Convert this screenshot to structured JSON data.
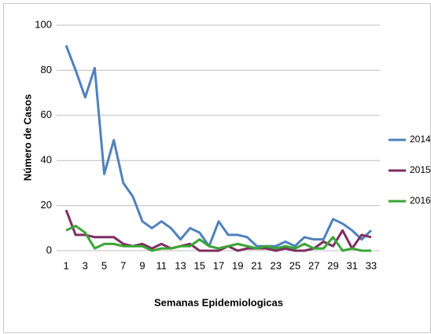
{
  "chart_data": {
    "type": "line",
    "y_label": "Número de Casos",
    "x_label": "Semanas Epidemiologicas",
    "categories": [
      "1",
      null,
      "3",
      null,
      "5",
      null,
      "7",
      null,
      "9",
      null,
      "11",
      null,
      "13",
      null,
      "15",
      null,
      "17",
      null,
      "19",
      null,
      "21",
      null,
      "23",
      null,
      "25",
      null,
      "27",
      null,
      "29",
      null,
      "31",
      null,
      "33"
    ],
    "series": [
      {
        "name": "2014",
        "color": "#4f81bd",
        "values": [
          91,
          80,
          68,
          81,
          34,
          49,
          30,
          24,
          13,
          10,
          13,
          10,
          5,
          10,
          8,
          2,
          13,
          7,
          7,
          6,
          2,
          2,
          2,
          4,
          2,
          6,
          5,
          5,
          14,
          12,
          9,
          5,
          9
        ]
      },
      {
        "name": "2015",
        "color": "#7f2d62",
        "values": [
          18,
          7,
          7,
          6,
          6,
          6,
          3,
          2,
          3,
          1,
          3,
          1,
          2,
          3,
          0,
          0,
          0,
          2,
          0,
          1,
          1,
          1,
          0,
          1,
          0,
          0,
          1,
          4,
          2,
          9,
          1,
          7,
          6
        ]
      },
      {
        "name": "2016",
        "color": "#3aa535",
        "values": [
          9,
          11,
          8,
          1,
          3,
          3,
          2,
          2,
          2,
          0,
          1,
          1,
          2,
          2,
          5,
          2,
          1,
          2,
          3,
          2,
          1,
          2,
          1,
          2,
          1,
          3,
          1,
          1,
          6,
          0,
          1,
          0,
          0
        ]
      }
    ],
    "ylim": [
      0,
      100
    ],
    "yticks": [
      0,
      20,
      40,
      60,
      80,
      100
    ],
    "grid": true,
    "legend": "right"
  }
}
